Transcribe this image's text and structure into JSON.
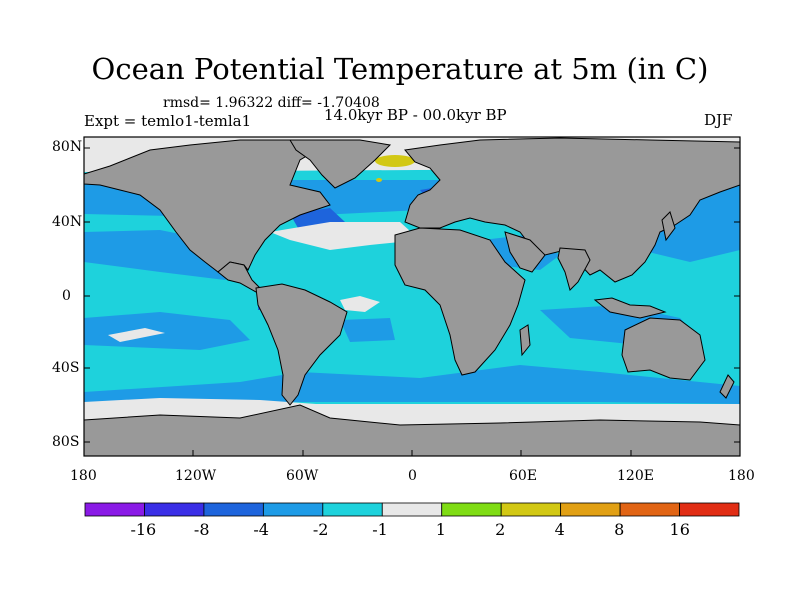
{
  "title": "Ocean Potential Temperature at 5m (in C)",
  "stats": "rmsd= 1.96322 diff= -1.70408",
  "experiment": "Expt = temlo1-temla1",
  "period": "14.0kyr BP - 00.0kyr BP",
  "season": "DJF",
  "lat_labels": [
    "80N",
    "40N",
    "0",
    "40S",
    "80S"
  ],
  "lon_labels": [
    "180",
    "120W",
    "60W",
    "0",
    "60E",
    "120E",
    "180"
  ],
  "colorbar": {
    "labels": [
      "-16",
      "-8",
      "-4",
      "-2",
      "-1",
      "1",
      "2",
      "4",
      "8",
      "16"
    ],
    "colors": [
      "#8a1ae6",
      "#3a2ee6",
      "#1e64dc",
      "#1e9be6",
      "#1ed2dc",
      "#e8e8e8",
      "#7fdc14",
      "#d2c814",
      "#e1a014",
      "#e16414",
      "#e12d14"
    ]
  },
  "colors": {
    "land": "#999999",
    "ocean_light": "#1ed2dc",
    "ocean_mid": "#1e9be6",
    "ocean_dark": "#1e64dc",
    "sea_ice": "#e8e8e8",
    "warm_anomaly": "#d2c814"
  }
}
